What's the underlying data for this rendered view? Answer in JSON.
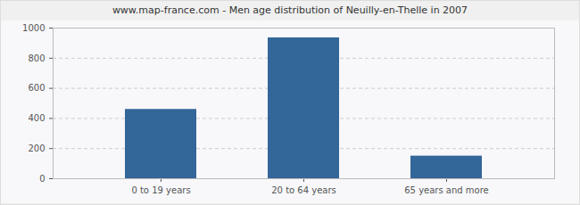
{
  "chart_data": {
    "type": "bar",
    "title": "www.map-france.com - Men age distribution of Neuilly-en-Thelle in 2007",
    "categories": [
      "0 to 19 years",
      "20 to 64 years",
      "65 years and more"
    ],
    "values": [
      460,
      935,
      150
    ],
    "color": "#336699",
    "ylim": [
      0,
      1000
    ],
    "yticks": [
      0,
      200,
      400,
      600,
      800,
      1000
    ],
    "grid": true
  }
}
